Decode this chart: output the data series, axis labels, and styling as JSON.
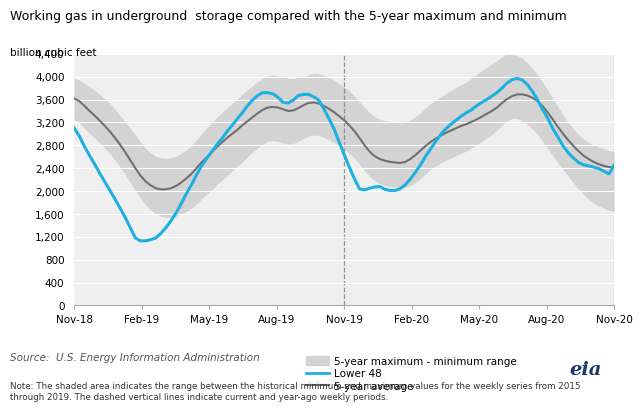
{
  "title": "Working gas in underground  storage compared with the 5-year maximum and minimum",
  "ylabel": "billion cubic feet",
  "source_text": "Source:  U.S. Energy Information Administration",
  "note_text": "Note: The shaded area indicates the range between the historical minimum and maximum values for the weekly series from 2015\nthrough 2019. The dashed vertical lines indicate current and year-ago weekly periods.",
  "ylim": [
    0,
    4400
  ],
  "yticks": [
    0,
    400,
    800,
    1200,
    1600,
    2000,
    2400,
    2800,
    3200,
    3600,
    4000,
    4400
  ],
  "xtick_labels": [
    "Nov-18",
    "Feb-19",
    "May-19",
    "Aug-19",
    "Nov-19",
    "Feb-20",
    "May-20",
    "Aug-20",
    "Nov-20"
  ],
  "band_color": "#d3d3d3",
  "lower48_color": "#1eb0e0",
  "avg_color": "#707070",
  "background_color": "#ffffff",
  "x": [
    0,
    1,
    2,
    3,
    4,
    5,
    6,
    7,
    8,
    9,
    10,
    11,
    12,
    13,
    14,
    15,
    16,
    17,
    18,
    19,
    20,
    21,
    22,
    23,
    24,
    25,
    26,
    27,
    28,
    29,
    30,
    31,
    32,
    33,
    34,
    35,
    36,
    37,
    38,
    39,
    40,
    41,
    42,
    43,
    44,
    45,
    46,
    47,
    48,
    49,
    50,
    51,
    52,
    53,
    54,
    55,
    56,
    57,
    58,
    59,
    60,
    61,
    62,
    63,
    64,
    65,
    66,
    67,
    68,
    69,
    70,
    71,
    72,
    73,
    74,
    75,
    76,
    77,
    78,
    79,
    80,
    81,
    82,
    83,
    84,
    85,
    86,
    87,
    88,
    89,
    90,
    91,
    92,
    93,
    94,
    95,
    96,
    97,
    98,
    99,
    100,
    101,
    102,
    103,
    104,
    105,
    106
  ],
  "lower48": [
    3100,
    2960,
    2780,
    2620,
    2470,
    2310,
    2160,
    2010,
    1860,
    1700,
    1540,
    1360,
    1180,
    1130,
    1130,
    1150,
    1180,
    1260,
    1360,
    1480,
    1620,
    1780,
    1950,
    2110,
    2280,
    2440,
    2570,
    2690,
    2810,
    2920,
    3040,
    3150,
    3260,
    3370,
    3490,
    3590,
    3670,
    3720,
    3720,
    3700,
    3640,
    3550,
    3540,
    3590,
    3670,
    3690,
    3690,
    3650,
    3590,
    3440,
    3270,
    3090,
    2860,
    2640,
    2420,
    2220,
    2040,
    2020,
    2050,
    2070,
    2080,
    2030,
    2010,
    2010,
    2040,
    2110,
    2210,
    2330,
    2460,
    2610,
    2740,
    2870,
    2990,
    3090,
    3170,
    3240,
    3310,
    3370,
    3420,
    3490,
    3550,
    3600,
    3660,
    3720,
    3800,
    3890,
    3950,
    3970,
    3940,
    3860,
    3740,
    3590,
    3420,
    3270,
    3090,
    2940,
    2790,
    2670,
    2580,
    2500,
    2460,
    2440,
    2420,
    2390,
    2350,
    2300,
    2450
  ],
  "avg": [
    3620,
    3570,
    3490,
    3400,
    3320,
    3230,
    3140,
    3040,
    2930,
    2810,
    2680,
    2540,
    2400,
    2270,
    2170,
    2100,
    2050,
    2030,
    2030,
    2050,
    2090,
    2150,
    2220,
    2300,
    2400,
    2500,
    2590,
    2680,
    2770,
    2850,
    2930,
    3000,
    3070,
    3150,
    3220,
    3290,
    3360,
    3420,
    3460,
    3470,
    3460,
    3430,
    3400,
    3410,
    3450,
    3500,
    3540,
    3550,
    3530,
    3490,
    3440,
    3380,
    3310,
    3240,
    3150,
    3050,
    2930,
    2800,
    2690,
    2610,
    2560,
    2530,
    2510,
    2500,
    2490,
    2510,
    2560,
    2630,
    2710,
    2790,
    2860,
    2920,
    2970,
    3020,
    3060,
    3100,
    3140,
    3170,
    3210,
    3250,
    3300,
    3350,
    3400,
    3460,
    3540,
    3610,
    3660,
    3690,
    3690,
    3670,
    3630,
    3570,
    3480,
    3370,
    3250,
    3120,
    3000,
    2890,
    2790,
    2700,
    2620,
    2560,
    2510,
    2470,
    2440,
    2420,
    2410
  ],
  "band_upper": [
    3970,
    3940,
    3880,
    3820,
    3760,
    3690,
    3610,
    3530,
    3430,
    3320,
    3210,
    3090,
    2980,
    2860,
    2750,
    2670,
    2610,
    2580,
    2570,
    2580,
    2610,
    2660,
    2720,
    2800,
    2900,
    3000,
    3100,
    3190,
    3290,
    3370,
    3450,
    3530,
    3610,
    3690,
    3770,
    3840,
    3910,
    3970,
    4010,
    4030,
    4010,
    3990,
    3970,
    3970,
    3980,
    4000,
    4030,
    4060,
    4050,
    4030,
    3990,
    3940,
    3880,
    3820,
    3750,
    3660,
    3560,
    3460,
    3370,
    3300,
    3260,
    3230,
    3210,
    3200,
    3190,
    3200,
    3240,
    3300,
    3370,
    3450,
    3530,
    3590,
    3650,
    3710,
    3760,
    3810,
    3860,
    3910,
    3970,
    4040,
    4100,
    4160,
    4220,
    4280,
    4350,
    4400,
    4400,
    4370,
    4320,
    4240,
    4140,
    4030,
    3900,
    3760,
    3610,
    3470,
    3330,
    3200,
    3090,
    2990,
    2910,
    2850,
    2810,
    2770,
    2740,
    2710,
    2690
  ],
  "band_lower": [
    3250,
    3190,
    3100,
    3010,
    2930,
    2840,
    2750,
    2650,
    2540,
    2420,
    2290,
    2150,
    2010,
    1880,
    1760,
    1670,
    1600,
    1560,
    1540,
    1540,
    1560,
    1600,
    1640,
    1700,
    1780,
    1860,
    1940,
    2020,
    2110,
    2190,
    2270,
    2350,
    2430,
    2510,
    2600,
    2680,
    2750,
    2820,
    2870,
    2880,
    2870,
    2840,
    2820,
    2830,
    2870,
    2920,
    2960,
    2980,
    2970,
    2940,
    2900,
    2850,
    2800,
    2730,
    2660,
    2580,
    2470,
    2360,
    2260,
    2180,
    2130,
    2100,
    2080,
    2070,
    2060,
    2070,
    2100,
    2150,
    2220,
    2300,
    2380,
    2440,
    2490,
    2540,
    2580,
    2620,
    2660,
    2700,
    2750,
    2800,
    2870,
    2930,
    2990,
    3060,
    3150,
    3230,
    3270,
    3270,
    3230,
    3160,
    3080,
    2990,
    2870,
    2740,
    2620,
    2490,
    2370,
    2260,
    2150,
    2040,
    1940,
    1860,
    1790,
    1740,
    1700,
    1660,
    1640
  ]
}
